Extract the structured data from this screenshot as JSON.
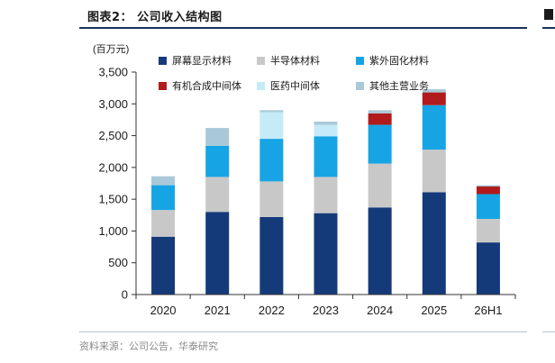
{
  "header": {
    "title": "图表2： 公司收入结构图"
  },
  "footer": {
    "source": "资料来源：公司公告，华泰研究"
  },
  "chart_data": {
    "type": "bar",
    "stacked": true,
    "unit_label": "(百万元)",
    "categories": [
      "2020",
      "2021",
      "2022",
      "2023",
      "2024",
      "2025",
      "26H1"
    ],
    "ylim": [
      0,
      3500
    ],
    "yticks": [
      0,
      500,
      1000,
      1500,
      2000,
      2500,
      3000,
      3500
    ],
    "ytick_labels": [
      "0",
      "500",
      "1,000",
      "1,500",
      "2,000",
      "2,500",
      "3,000",
      "3,500"
    ],
    "grid": false,
    "legend_position": "top",
    "series": [
      {
        "name": "屏幕显示材料",
        "color": "#143a7a",
        "values": [
          910,
          1300,
          1220,
          1280,
          1370,
          1610,
          820
        ]
      },
      {
        "name": "半导体材料",
        "color": "#c8c8c8",
        "values": [
          420,
          550,
          560,
          570,
          690,
          670,
          370
        ]
      },
      {
        "name": "紫外固化材料",
        "color": "#16a4e4",
        "values": [
          390,
          490,
          670,
          640,
          610,
          700,
          390
        ]
      },
      {
        "name": "有机合成中间体",
        "color": "#b11b1b",
        "values": [
          0,
          0,
          0,
          0,
          180,
          200,
          120
        ]
      },
      {
        "name": "医药中间体",
        "color": "#c5ebf8",
        "values": [
          0,
          0,
          420,
          180,
          0,
          0,
          0
        ]
      },
      {
        "name": "其他主营业务",
        "color": "#a9c9d8",
        "values": [
          140,
          280,
          30,
          50,
          50,
          50,
          20
        ]
      }
    ]
  }
}
